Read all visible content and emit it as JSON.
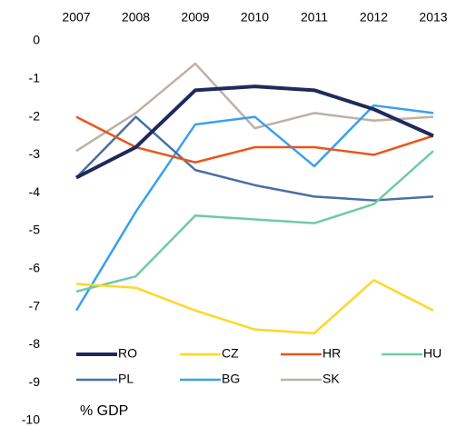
{
  "chart_data": {
    "type": "line",
    "categories": [
      "2007",
      "2008",
      "2009",
      "2010",
      "2011",
      "2012",
      "2013"
    ],
    "series": [
      {
        "name": "RO",
        "color": "#1f2a5c",
        "values": [
          -3.6,
          -2.8,
          -1.3,
          -1.2,
          -1.3,
          -1.8,
          -2.5
        ]
      },
      {
        "name": "CZ",
        "color": "#ffd726",
        "values": [
          -6.4,
          -6.5,
          -7.1,
          -7.6,
          -7.7,
          -6.3,
          -7.1
        ]
      },
      {
        "name": "HR",
        "color": "#e8561c",
        "values": [
          -2.0,
          -2.8,
          -3.2,
          -2.8,
          -2.8,
          -3.0,
          -2.5
        ]
      },
      {
        "name": "HU",
        "color": "#6fcba5",
        "values": [
          -6.6,
          -6.2,
          -4.6,
          -4.7,
          -4.8,
          -4.3,
          -2.9
        ]
      },
      {
        "name": "PL",
        "color": "#4a6fa5",
        "values": [
          -3.6,
          -2.0,
          -3.4,
          -3.8,
          -4.1,
          -4.2,
          -4.1
        ]
      },
      {
        "name": "BG",
        "color": "#3a9ff0",
        "values": [
          -7.1,
          -4.5,
          -2.2,
          -2.0,
          -3.3,
          -1.7,
          -1.9
        ]
      },
      {
        "name": "SK",
        "color": "#bfb0a5",
        "values": [
          -2.9,
          -1.9,
          -0.6,
          -2.3,
          -1.9,
          -2.1,
          -2.0
        ]
      }
    ],
    "ylim": [
      -10,
      0
    ],
    "yticks": [
      0,
      -1,
      -2,
      -3,
      -4,
      -5,
      -6,
      -7,
      -8,
      -9,
      -10
    ],
    "annotation": "% GDP",
    "legend": "bottom"
  }
}
